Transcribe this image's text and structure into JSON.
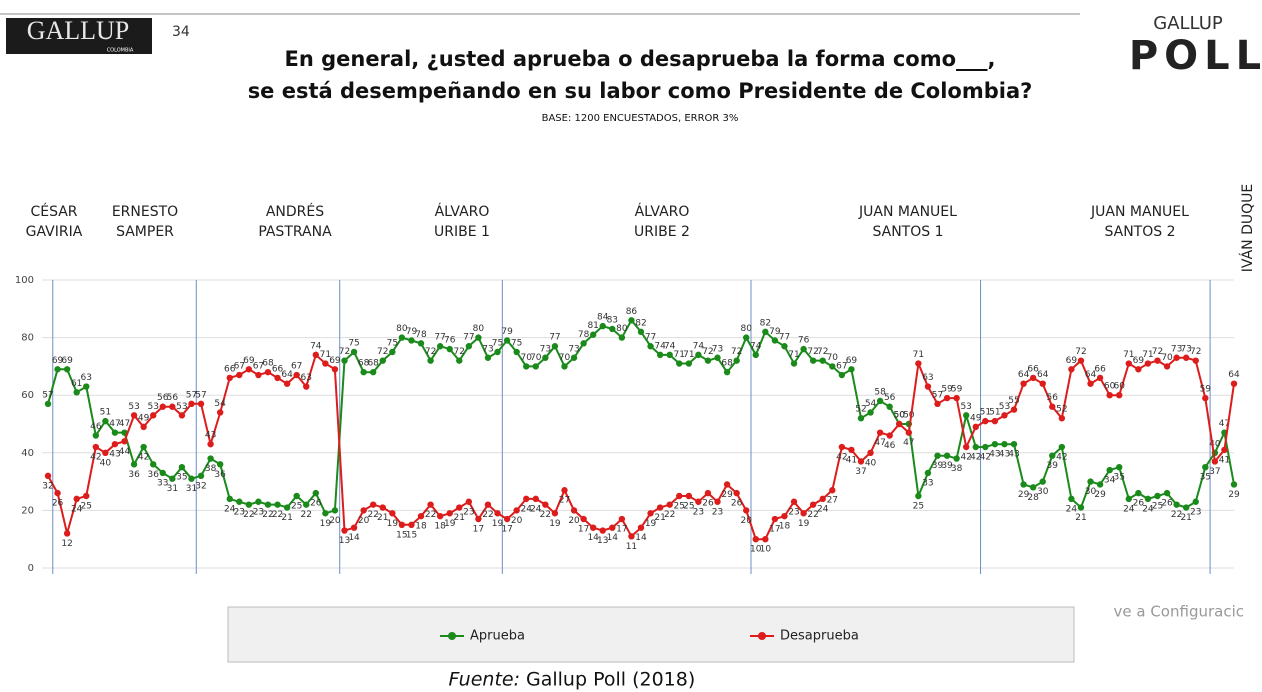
{
  "header": {
    "logo": "GALLUP",
    "logo_sub": "COLOMBIA",
    "page_number": "34",
    "poll_logo_top": "GALLUP",
    "poll_logo_bottom": "POLL"
  },
  "chart_data": {
    "type": "line",
    "title": [
      "En general, ¿usted aprueba o desaprueba la forma como___,",
      "se está desempeñando en su labor como Presidente de Colombia?"
    ],
    "subtitle": "BASE: 1200 ENCUESTADOS, ERROR 3%",
    "periods": [
      [
        "CÉSAR",
        "GAVIRIA"
      ],
      [
        "ERNESTO",
        "SAMPER"
      ],
      [
        "ANDRÉS",
        "PASTRANA"
      ],
      [
        "ÁLVARO",
        "URIBE 1"
      ],
      [
        "ÁLVARO",
        "URIBE 2"
      ],
      [
        "JUAN MANUEL",
        "SANTOS 1"
      ],
      [
        "JUAN MANUEL",
        "SANTOS 2"
      ],
      [
        "IVÁN DUQUE"
      ]
    ],
    "categories": [
      null,
      null,
      null,
      null,
      null,
      null,
      null,
      null,
      null,
      null,
      null,
      null,
      null,
      null,
      null,
      null,
      null,
      null,
      null,
      null,
      null,
      null,
      null,
      null,
      null,
      null,
      null,
      null,
      null,
      null,
      null,
      null,
      null,
      null,
      null,
      null,
      null,
      null,
      null,
      null,
      null,
      null,
      null,
      null,
      null,
      null,
      null,
      null,
      null,
      null,
      null,
      null,
      null,
      null,
      null,
      null,
      null,
      null,
      null,
      null,
      null,
      null,
      null,
      null,
      null,
      null,
      null,
      null,
      null,
      null,
      null,
      null,
      null,
      null,
      null,
      null,
      null,
      null,
      null,
      null,
      null,
      null,
      null,
      null,
      null,
      null,
      null,
      null,
      null,
      null,
      null,
      null,
      null,
      null,
      null,
      null,
      null,
      null,
      null,
      null,
      null,
      null,
      null,
      null,
      null,
      null,
      null,
      null,
      null,
      null,
      null,
      null,
      null,
      null,
      null,
      null,
      null,
      null,
      null,
      null,
      null,
      null,
      null,
      null,
      null
    ],
    "series": [
      {
        "name": "Aprueba",
        "color": "#1a8a1a",
        "values": [
          57,
          69,
          69,
          61,
          63,
          46,
          51,
          47,
          47,
          36,
          42,
          36,
          33,
          31,
          35,
          31,
          32,
          38,
          36,
          24,
          23,
          22,
          23,
          22,
          22,
          21,
          25,
          22,
          26,
          19,
          20,
          72,
          75,
          68,
          68,
          72,
          75,
          80,
          79,
          78,
          72,
          77,
          76,
          72,
          77,
          80,
          73,
          75,
          79,
          75,
          70,
          70,
          73,
          77,
          70,
          73,
          78,
          81,
          84,
          83,
          80,
          86,
          82,
          77,
          74,
          74,
          71,
          71,
          74,
          72,
          73,
          68,
          72,
          80,
          74,
          82,
          79,
          77,
          71,
          76,
          72,
          72,
          70,
          67,
          69,
          52,
          54,
          58,
          56,
          50,
          50,
          25,
          33,
          39,
          39,
          38,
          53,
          42,
          42,
          43,
          43,
          43,
          29,
          28,
          30,
          39,
          42,
          24,
          21,
          30,
          29,
          34,
          35,
          24,
          26,
          24,
          25,
          26,
          22,
          21,
          23,
          35,
          40,
          47,
          29
        ]
      },
      {
        "name": "Desaprueba",
        "color": "#dd1c1c",
        "values": [
          32,
          26,
          12,
          24,
          25,
          42,
          40,
          43,
          44,
          53,
          49,
          53,
          56,
          56,
          53,
          57,
          57,
          43,
          54,
          66,
          67,
          69,
          67,
          68,
          66,
          64,
          67,
          63,
          74,
          71,
          69,
          13,
          14,
          20,
          22,
          21,
          19,
          15,
          15,
          18,
          22,
          18,
          19,
          21,
          23,
          17,
          22,
          19,
          17,
          20,
          24,
          24,
          22,
          19,
          27,
          20,
          17,
          14,
          13,
          14,
          17,
          11,
          14,
          19,
          21,
          22,
          25,
          25,
          23,
          26,
          23,
          29,
          26,
          20,
          10,
          10,
          17,
          18,
          23,
          19,
          22,
          24,
          27,
          42,
          41,
          37,
          40,
          47,
          46,
          50,
          47,
          71,
          63,
          57,
          59,
          59,
          42,
          49,
          51,
          51,
          53,
          55,
          64,
          66,
          64,
          56,
          52,
          69,
          72,
          64,
          66,
          60,
          60,
          71,
          69,
          71,
          72,
          70,
          73,
          73,
          72,
          59,
          37,
          41,
          64
        ]
      }
    ],
    "ylim": [
      0,
      100
    ],
    "yticks": [
      0,
      20,
      40,
      60,
      80,
      100
    ]
  },
  "watermark": "ve a Configuracic",
  "footer": {
    "source_label": "Fuente:",
    "source": "Gallup Poll (2018)"
  }
}
